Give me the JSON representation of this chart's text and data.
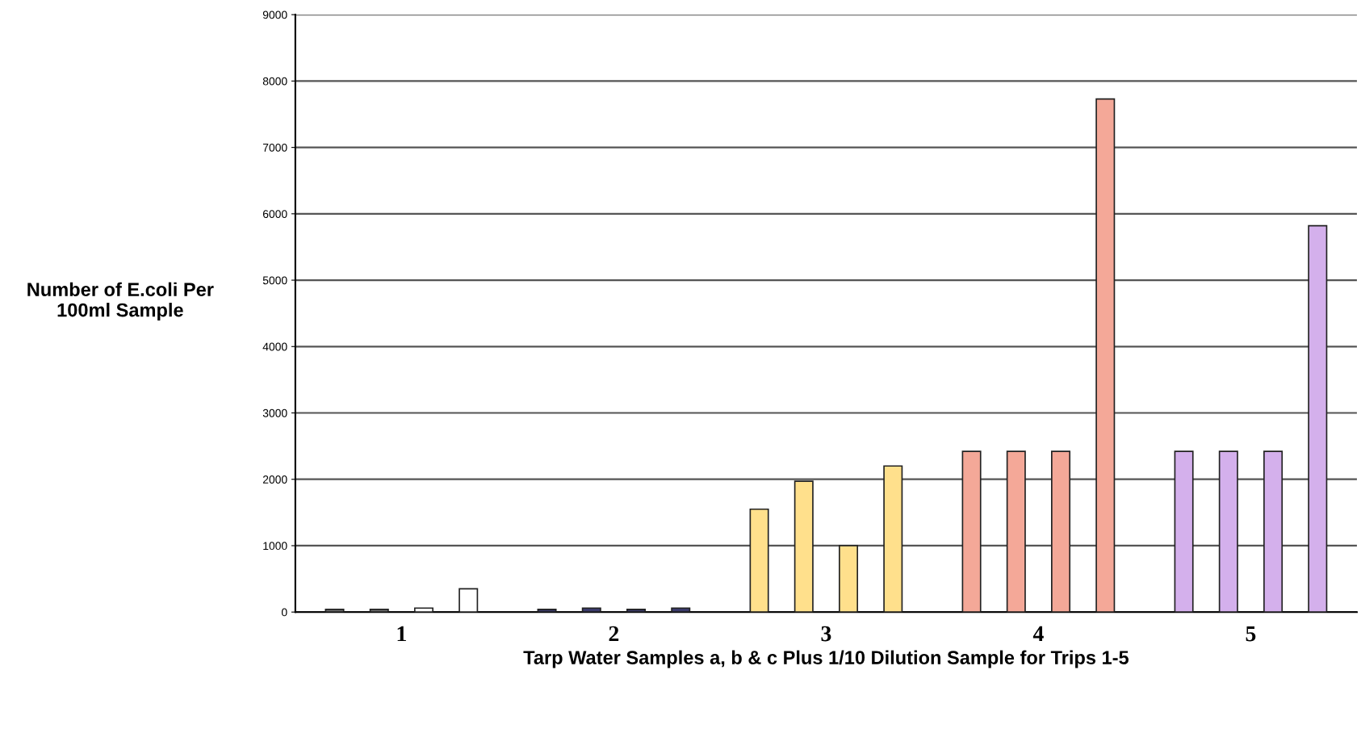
{
  "chart_data": {
    "type": "bar",
    "xlabel": "Tarp Water Samples a, b & c Plus 1/10 Dilution Sample for Trips 1-5",
    "ylabel": "Number of E.coli Per\n100ml Sample",
    "categories": [
      "1",
      "2",
      "3",
      "4",
      "5"
    ],
    "series": [
      {
        "values": [
          40,
          40,
          1550,
          2420,
          2420
        ],
        "colors": [
          "#707070",
          "#3a3a6a",
          "#ffe08c",
          "#f4a898",
          "#d4b0ec"
        ]
      },
      {
        "values": [
          40,
          60,
          1970,
          2420,
          2420
        ],
        "colors": [
          "#707070",
          "#3a3a6a",
          "#ffe08c",
          "#f4a898",
          "#d4b0ec"
        ]
      },
      {
        "values": [
          60,
          40,
          1000,
          2420,
          2420
        ],
        "colors": [
          "#ffffff",
          "#3a3a6a",
          "#ffe08c",
          "#f4a898",
          "#d4b0ec"
        ]
      },
      {
        "values": [
          350,
          60,
          2200,
          7730,
          5820
        ],
        "colors": [
          "#ffffff",
          "#3a3a6a",
          "#ffe08c",
          "#f4a898",
          "#d4b0ec"
        ]
      }
    ],
    "ylim": [
      0,
      9000
    ],
    "yticks": [
      0,
      1000,
      2000,
      3000,
      4000,
      5000,
      6000,
      7000,
      8000,
      9000
    ],
    "grid": "y"
  }
}
